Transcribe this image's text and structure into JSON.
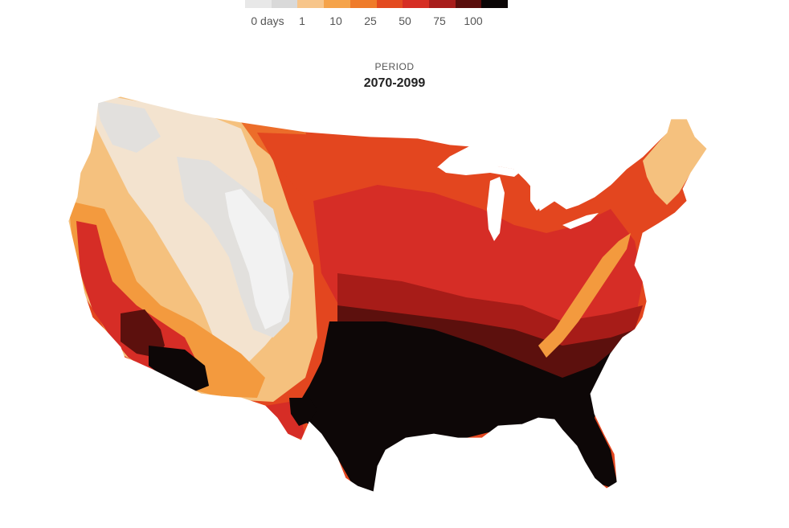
{
  "legend": {
    "labels": [
      "0 days",
      "1",
      "10",
      "25",
      "50",
      "75",
      "100"
    ],
    "colors": [
      "#e8e8e8",
      "#d9d9d9",
      "#f7c58a",
      "#f5a34a",
      "#ef7b2a",
      "#e34a1f",
      "#d62e24",
      "#a81d1b",
      "#5a0e0c",
      "#0b0606"
    ]
  },
  "period": {
    "caption": "PERIOD",
    "value": "2070-2099"
  },
  "map": {
    "subject": "contiguous-united-states-counties",
    "colors": {
      "none": "#e2e0dd",
      "pale": "#f3e3cf",
      "light": "#f5c17e",
      "orange": "#f39a3e",
      "orange_deep": "#ec6d2a",
      "red_orange": "#e3461f",
      "red": "#d62d26",
      "dark_red": "#a71c18",
      "maroon": "#5c100d",
      "black": "#0d0707",
      "white_patch": "#f2f2f2"
    }
  }
}
